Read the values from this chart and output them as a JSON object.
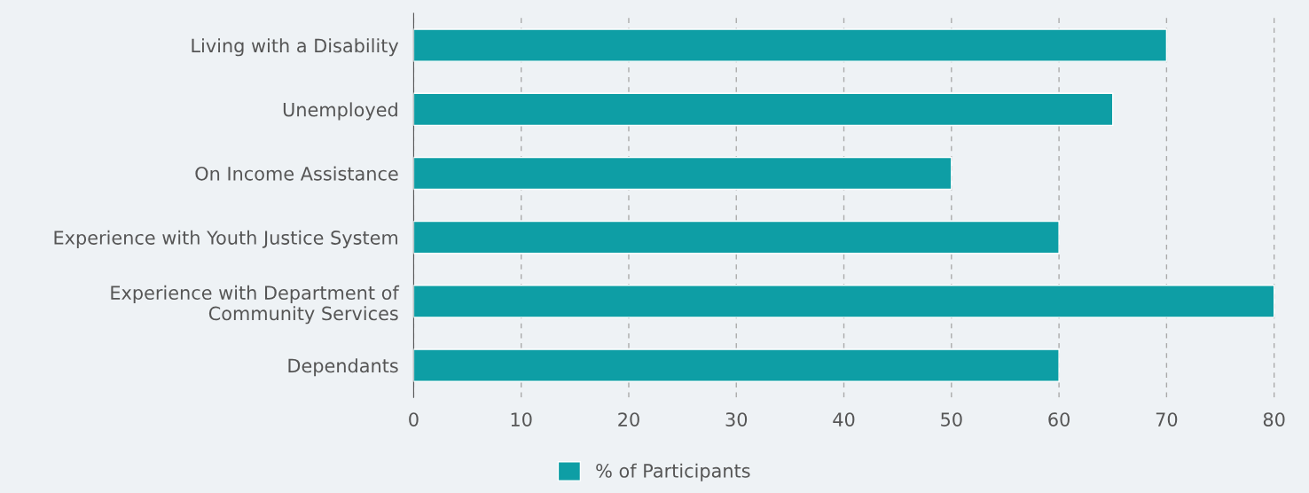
{
  "chart_data": {
    "type": "bar",
    "orientation": "horizontal",
    "categories": [
      "Living with a Disability",
      "Unemployed",
      "On Income Assistance",
      "Experience with Youth Justice System",
      "Experience with Department of\nCommunity Services",
      "Dependants"
    ],
    "series": [
      {
        "name": "% of Participants",
        "color": "#0e9ea5",
        "values": [
          70,
          65,
          50,
          60,
          80,
          60
        ]
      }
    ],
    "xlim": [
      0,
      83
    ],
    "xticks": [
      0,
      10,
      20,
      30,
      40,
      50,
      60,
      70,
      80
    ],
    "grid": "x",
    "legend": "bottom"
  }
}
